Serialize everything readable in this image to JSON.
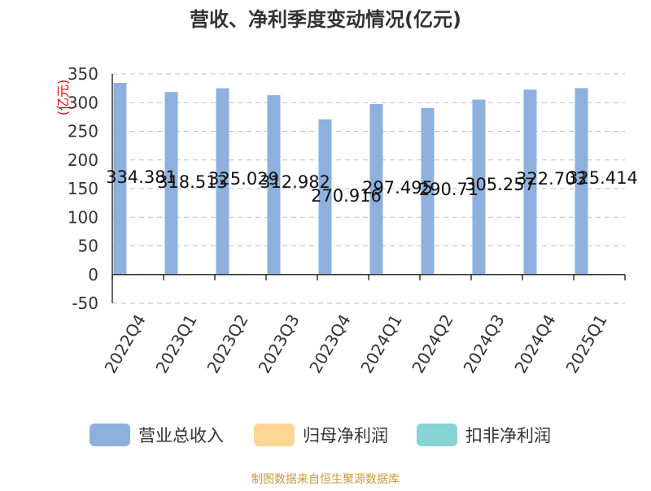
{
  "chart_data": {
    "type": "bar",
    "title": "营收、净利季度变动情况(亿元)",
    "ylabel": "(亿元)",
    "categories": [
      "2022Q4",
      "2023Q1",
      "2023Q2",
      "2023Q3",
      "2023Q4",
      "2024Q1",
      "2024Q2",
      "2024Q3",
      "2024Q4",
      "2025Q1"
    ],
    "series": [
      {
        "name": "营业总收入",
        "values": [
          334.381,
          318.513,
          325.029,
          312.982,
          270.916,
          297.495,
          290.71,
          305.257,
          322.703,
          325.414
        ],
        "color": "#8eb0dc"
      },
      {
        "name": "归母净利润",
        "values": [
          1.5,
          1.4,
          1.6,
          1.3,
          1.7,
          1.2,
          1.5,
          1.4,
          1.6,
          1.5
        ],
        "color": "#fdd693"
      },
      {
        "name": "扣非净利润",
        "values": [
          1.2,
          1.1,
          1.3,
          1.0,
          1.4,
          1.0,
          1.2,
          1.1,
          1.3,
          1.2
        ],
        "color": "#86d4d6"
      }
    ],
    "data_labels": [
      "334.381",
      "318.513",
      "325.029",
      "312.982",
      "270.916",
      "297.495",
      "290.71",
      "305.257",
      "322.703",
      "325.414"
    ],
    "ylim": [
      -50,
      350
    ],
    "yticks": [
      350,
      300,
      250,
      200,
      150,
      100,
      50,
      0,
      -50
    ],
    "grid": true,
    "legend_position": "bottom"
  },
  "footer": {
    "source": "制图数据来自恒生聚源数据库"
  }
}
